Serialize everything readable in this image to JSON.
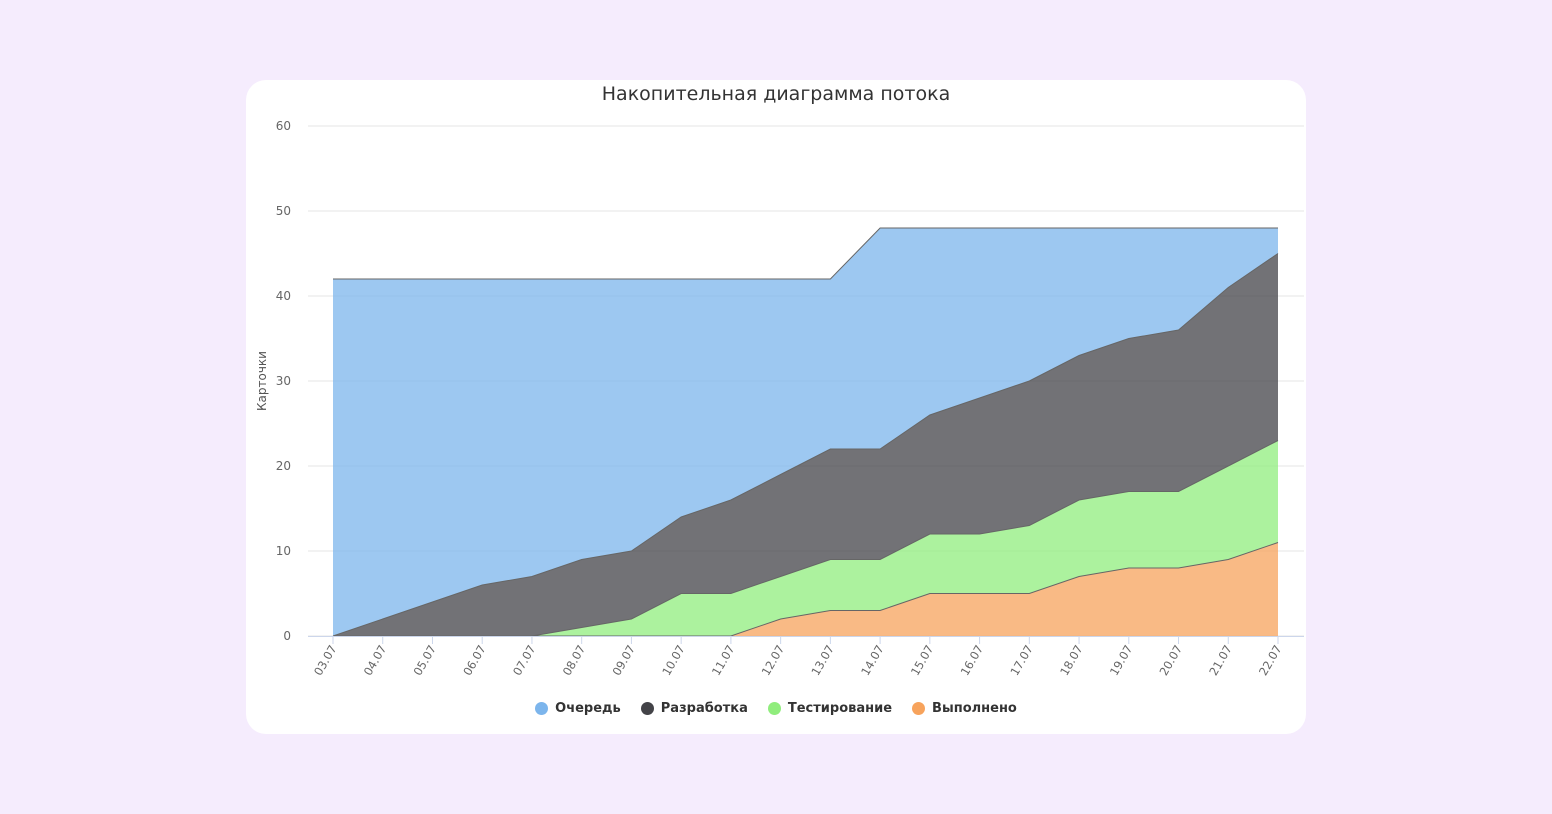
{
  "chart_data": {
    "type": "area",
    "stacked": true,
    "title": "Накопительная диаграмма потока",
    "ylabel": "Карточки",
    "xlabel": "",
    "ylim": [
      0,
      60
    ],
    "yticks": [
      0,
      10,
      20,
      30,
      40,
      50,
      60
    ],
    "grid": true,
    "legend_position": "bottom",
    "x": [
      "03.07",
      "04.07",
      "05.07",
      "06.07",
      "07.07",
      "08.07",
      "09.07",
      "10.07",
      "11.07",
      "12.07",
      "13.07",
      "14.07",
      "15.07",
      "16.07",
      "17.07",
      "18.07",
      "19.07",
      "20.07",
      "21.07",
      "22.07"
    ],
    "series": [
      {
        "name": "Очередь",
        "color": "#7cb5ec",
        "values": [
          42,
          40,
          38,
          36,
          35,
          33,
          32,
          28,
          26,
          23,
          20,
          26,
          22,
          20,
          18,
          15,
          13,
          12,
          7,
          3
        ]
      },
      {
        "name": "Разработка",
        "color": "#434348",
        "values": [
          0,
          2,
          4,
          6,
          7,
          8,
          8,
          9,
          11,
          12,
          13,
          13,
          14,
          16,
          17,
          17,
          18,
          19,
          21,
          22
        ]
      },
      {
        "name": "Тестирование",
        "color": "#90ed7d",
        "values": [
          0,
          0,
          0,
          0,
          0,
          1,
          2,
          5,
          5,
          5,
          6,
          6,
          7,
          7,
          8,
          9,
          9,
          9,
          11,
          12
        ]
      },
      {
        "name": "Выполнено",
        "color": "#f7a35c",
        "values": [
          0,
          0,
          0,
          0,
          0,
          0,
          0,
          0,
          0,
          2,
          3,
          3,
          5,
          5,
          5,
          7,
          8,
          8,
          9,
          11
        ]
      }
    ]
  }
}
